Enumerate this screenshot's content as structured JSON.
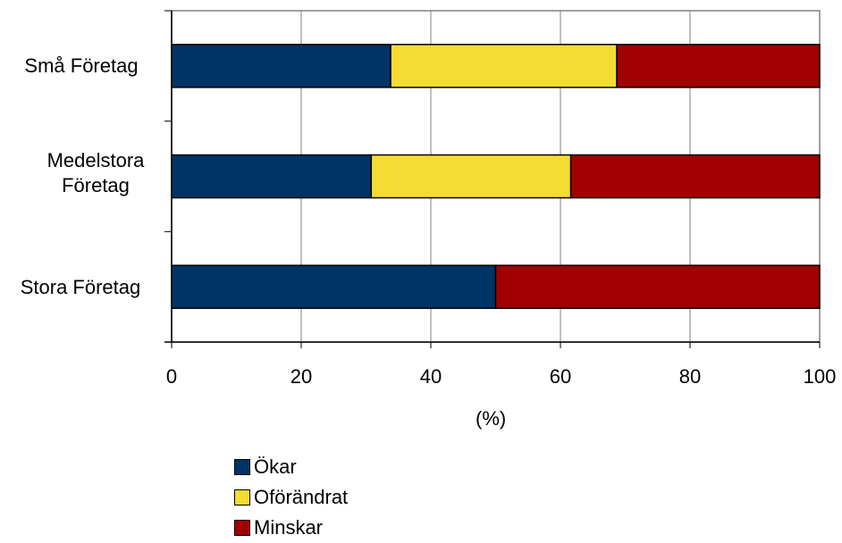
{
  "chart_data": {
    "type": "bar",
    "orientation": "horizontal",
    "stacked": true,
    "categories": [
      "Små Företag",
      "Medelstora Företag",
      "Stora Företag"
    ],
    "series": [
      {
        "name": "Ökar",
        "values": [
          33.8,
          30.8,
          50.0
        ],
        "color": "#003366"
      },
      {
        "name": "Oförändrat",
        "values": [
          34.9,
          30.8,
          0.0
        ],
        "color": "#f5dc32"
      },
      {
        "name": "Minskar",
        "values": [
          31.3,
          38.4,
          50.0
        ],
        "color": "#a00000"
      }
    ],
    "xlabel": "(%)",
    "xlim": [
      0,
      100
    ],
    "xticks": [
      "0",
      "20",
      "40",
      "60",
      "80",
      "100"
    ],
    "grid": true,
    "legend_position": "bottom"
  }
}
